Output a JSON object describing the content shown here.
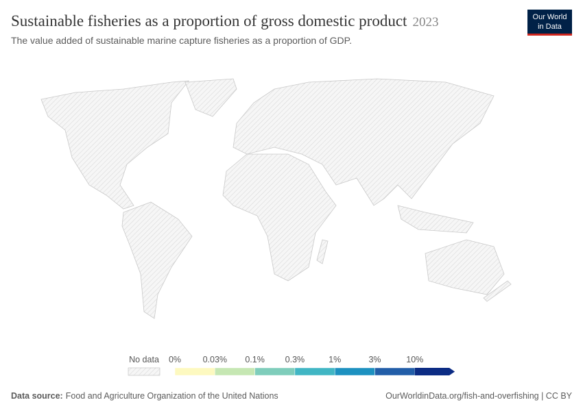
{
  "header": {
    "title": "Sustainable fisheries as a proportion of gross domestic product",
    "year": "2023",
    "subtitle": "The value added of sustainable marine capture fisheries as a proportion of GDP.",
    "logo": [
      "Our World",
      "in Data"
    ]
  },
  "legend": {
    "no_data": "No data",
    "ticks": [
      "0%",
      "0.03%",
      "0.1%",
      "0.3%",
      "1%",
      "3%",
      "10%"
    ],
    "colors": [
      "#fdf9c0",
      "#c6e7b3",
      "#7fcdbb",
      "#41b6c4",
      "#1d91c0",
      "#225ea8",
      "#0c2c84"
    ]
  },
  "footer": {
    "source_label": "Data source:",
    "source": "Food and Agriculture Organization of the United Nations",
    "url": "OurWorldinData.org/fish-and-overfishing | CC BY"
  }
}
